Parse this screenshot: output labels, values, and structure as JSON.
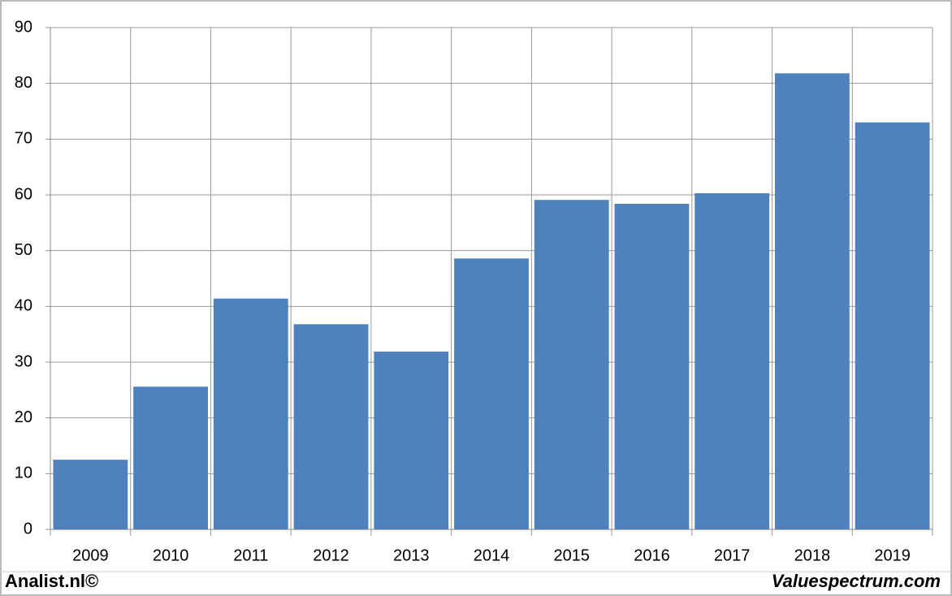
{
  "chart_data": {
    "type": "bar",
    "categories": [
      "2009",
      "2010",
      "2011",
      "2012",
      "2013",
      "2014",
      "2015",
      "2016",
      "2017",
      "2018",
      "2019"
    ],
    "values": [
      12.5,
      25.6,
      41.4,
      36.8,
      31.9,
      48.6,
      59.1,
      58.4,
      60.3,
      81.8,
      73.0
    ],
    "color": "#4f81bd",
    "ylim": [
      0,
      90
    ],
    "yticks": [
      0,
      10,
      20,
      30,
      40,
      50,
      60,
      70,
      80,
      90
    ],
    "grid": true
  },
  "footer": {
    "left": "Analist.nl©",
    "right": "Valuespectrum.com"
  }
}
